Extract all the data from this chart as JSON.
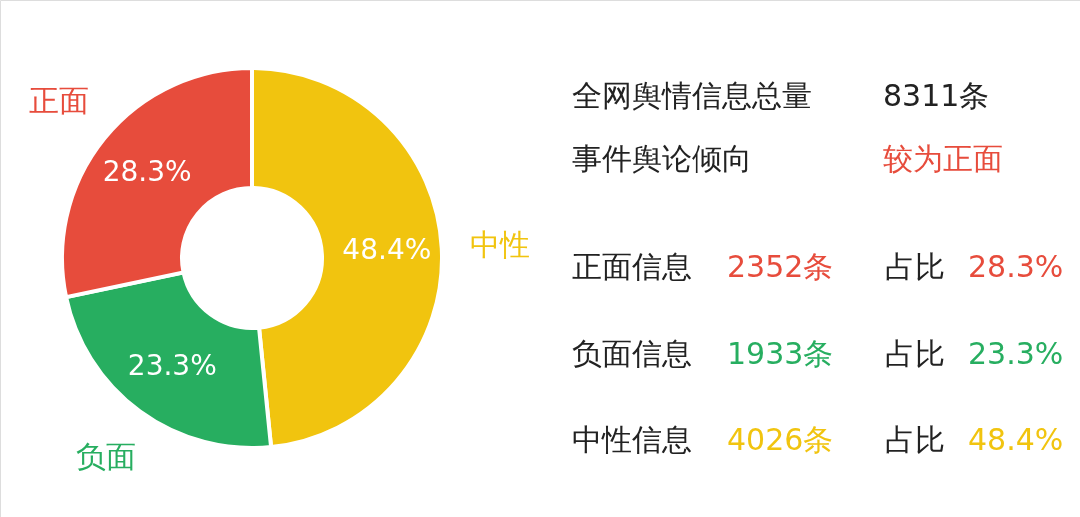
{
  "chart_data": {
    "type": "donut",
    "categories": [
      "中性",
      "负面",
      "正面"
    ],
    "values": [
      48.4,
      23.3,
      28.3
    ],
    "colors": [
      "#f1c40f",
      "#27ae60",
      "#e74c3c"
    ],
    "value_labels": [
      "48.4%",
      "23.3%",
      "28.3%"
    ],
    "annotations": [
      "全网舆情信息总量",
      "8311条",
      "事件舆论倾向",
      "较为正面",
      "正面信息",
      "2352条",
      "占比",
      "28.3%",
      "负面信息",
      "1933条",
      "占比",
      "23.3%",
      "中性信息",
      "4026条",
      "占比",
      "48.4%"
    ]
  }
}
